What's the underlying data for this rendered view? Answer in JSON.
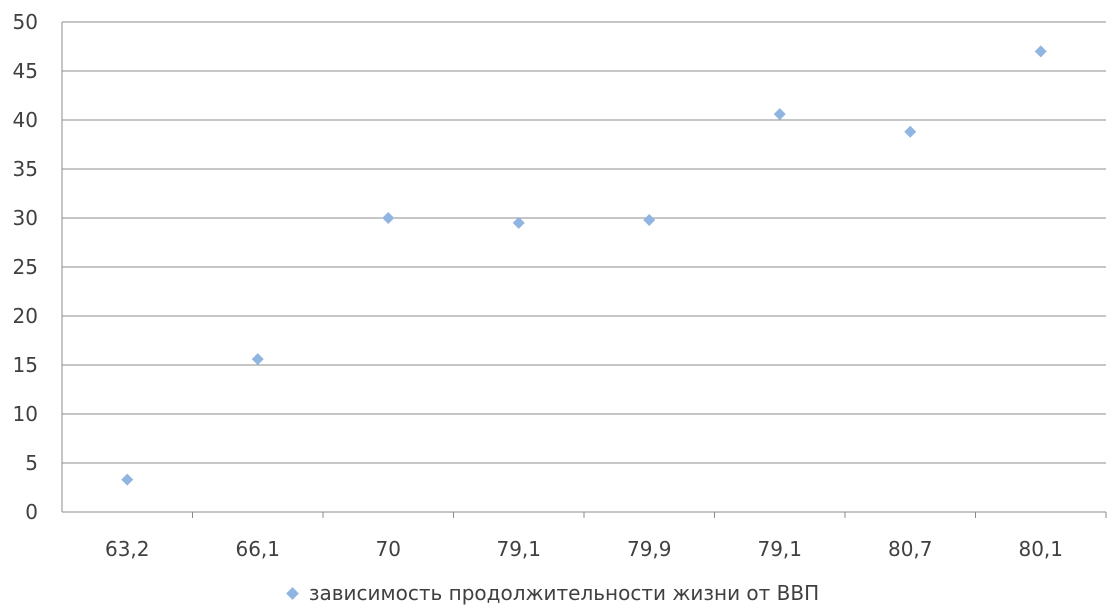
{
  "chart_data": {
    "type": "scatter",
    "title": "",
    "xlabel": "",
    "ylabel": "",
    "x": [
      "63,2",
      "66,1",
      "70",
      "79,1",
      "79,9",
      "79,1",
      "80,7",
      "80,1"
    ],
    "series": [
      {
        "name": "зависимость продолжительности жизни от ВВП",
        "values": [
          3.3,
          15.6,
          30.0,
          29.5,
          29.8,
          40.6,
          38.8,
          47.0
        ]
      }
    ],
    "ylim": [
      0,
      50
    ],
    "yticks": [
      0,
      5,
      10,
      15,
      20,
      25,
      30,
      35,
      40,
      45,
      50
    ],
    "ytick_labels": [
      "0",
      "5",
      "10",
      "15",
      "20",
      "25",
      "30",
      "35",
      "40",
      "45",
      "50"
    ],
    "grid": "horizontal",
    "legend": "bottom",
    "marker_color": "#8fb5e0",
    "grid_color": "#8c8c8c"
  }
}
